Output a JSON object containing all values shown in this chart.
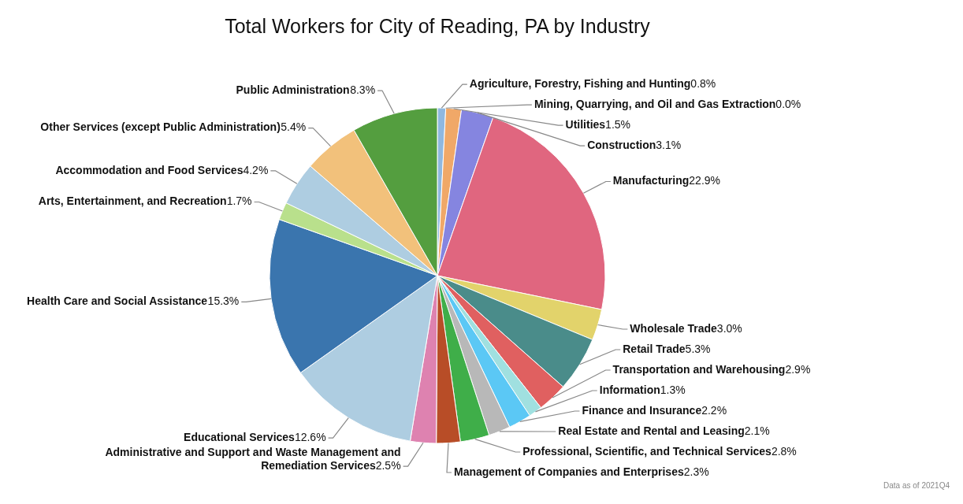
{
  "chart_data": {
    "type": "pie",
    "title": "Total Workers for City of Reading, PA by Industry",
    "categories": [
      "Agriculture, Forestry, Fishing and Hunting",
      "Mining, Quarrying, and Oil and Gas Extraction",
      "Utilities",
      "Construction",
      "Manufacturing",
      "Wholesale Trade",
      "Retail Trade",
      "Transportation and Warehousing",
      "Information",
      "Finance and Insurance",
      "Real Estate and Rental and Leasing",
      "Professional, Scientific, and Technical Services",
      "Management of Companies and Enterprises",
      "Administrative and Support and Waste Management and Remediation Services",
      "Educational Services",
      "Health Care and Social Assistance",
      "Arts, Entertainment, and Recreation",
      "Accommodation and Food Services",
      "Other Services (except Public Administration)",
      "Public Administration"
    ],
    "values": [
      0.8,
      0.0,
      1.5,
      3.1,
      22.9,
      3.0,
      5.3,
      2.9,
      1.3,
      2.2,
      2.1,
      2.8,
      2.3,
      2.5,
      12.6,
      15.3,
      1.7,
      4.2,
      5.4,
      8.3
    ],
    "value_labels": [
      "0.8%",
      "0.0%",
      "1.5%",
      "3.1%",
      "22.9%",
      "3.0%",
      "5.3%",
      "2.9%",
      "1.3%",
      "2.2%",
      "2.1%",
      "2.8%",
      "2.3%",
      "2.5%",
      "12.6%",
      "15.3%",
      "1.7%",
      "4.2%",
      "5.4%",
      "8.3%"
    ],
    "colors": [
      "#8fb8e0",
      "#6a9fd0",
      "#f0a868",
      "#8585e0",
      "#e0667f",
      "#e2d36b",
      "#4a8c8a",
      "#e06060",
      "#a0e0e0",
      "#5bc8f5",
      "#b8b8b8",
      "#3fae49",
      "#b84d27",
      "#de82b0",
      "#aecde1",
      "#3a75ae",
      "#b9e08c",
      "#aecde1",
      "#f2c17b",
      "#549e3f"
    ],
    "legend": false,
    "annotations": [
      "Data as of 2021Q4"
    ]
  }
}
